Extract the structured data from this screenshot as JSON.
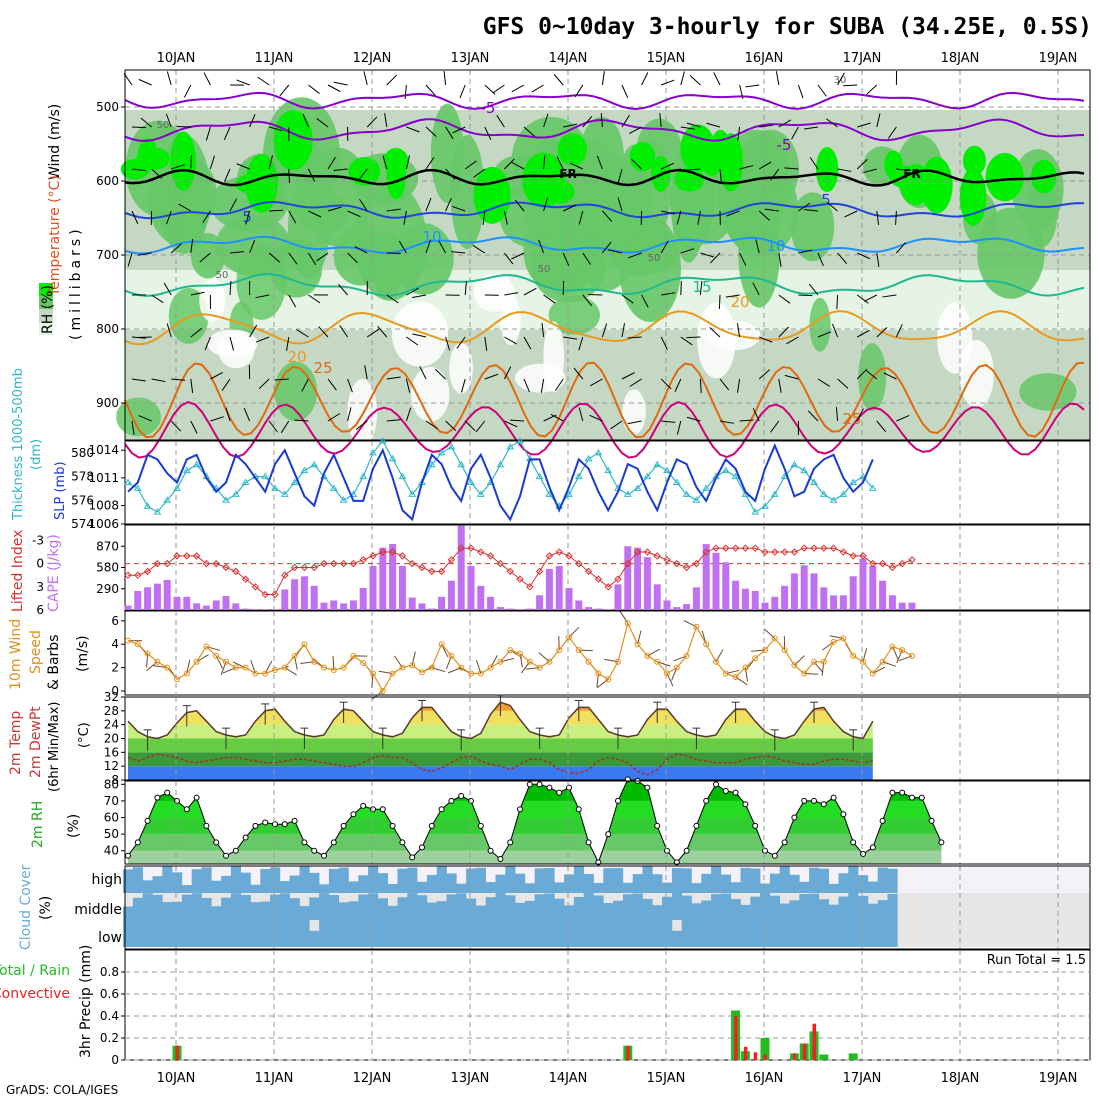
{
  "title": "GFS 0~10day 3-hourly for SUBA (34.25E, 0.5S)",
  "footer": "GrADS: COLA/IGES",
  "colors": {
    "rh_light": "#e8f5e8",
    "rh_mid": "#c0d8c0",
    "rh_dark": "#5cc85c",
    "rh_bright": "#00e000",
    "wind_barb": "#000000",
    "temp_purple": "#8800cc",
    "temp_blue": "#2244dd",
    "temp_sky": "#1e90ff",
    "temp_teal": "#20b890",
    "temp_orange": "#e89a20",
    "temp_dkorange": "#e06a10",
    "temp_magenta": "#d0007a",
    "slp": "#1a3ad0",
    "thick": "#30b8c8",
    "cape": "#c070f0",
    "li": "#d83030",
    "wind10": "#e0901a",
    "cloud": "#6aaad6",
    "precip_total": "#22bb22",
    "precip_conv": "#ee2222"
  },
  "dates": [
    "10JAN",
    "11JAN",
    "12JAN",
    "13JAN",
    "14JAN",
    "15JAN",
    "16JAN",
    "17JAN",
    "18JAN",
    "19JAN"
  ],
  "panels": {
    "p1": {
      "ylabel_wind": "Wind (m/s)",
      "ylabel_temp": "Temperature (°C)",
      "ylabel_rh": "RH (%)",
      "ylabel_mb": "(millibars)",
      "yticks": [
        "500",
        "600",
        "700",
        "800",
        "900"
      ],
      "contour_labels": [
        "-5",
        "-5",
        "FR",
        "FR",
        "5",
        "5",
        "10",
        "10",
        "15",
        "20",
        "20",
        "25",
        "25",
        "50",
        "50",
        "50",
        "50",
        "30"
      ]
    },
    "p2": {
      "ylabel_left": "Thickness 1000-500mb",
      "ylabel_unit_left": "(dm)",
      "ylabel_right": "SLP (mb)",
      "thick_ticks": [
        "580",
        "578",
        "576",
        "574"
      ],
      "slp_ticks": [
        "1014",
        "1011",
        "1008",
        "1006"
      ]
    },
    "p3": {
      "ylabel_left": "Lifted Index",
      "ylabel_right": "CAPE (J/kg)",
      "li_ticks": [
        "-3",
        "0",
        "3",
        "6"
      ],
      "cape_ticks": [
        "870",
        "580",
        "290"
      ]
    },
    "p4": {
      "ylabel1": "10m Wind",
      "ylabel2": "Speed",
      "ylabel3": "& Barbs",
      "ylabel_unit": "(m/s)",
      "yticks": [
        "6",
        "4",
        "2",
        "0"
      ]
    },
    "p5": {
      "ylabel1": "2m Temp",
      "ylabel2": "2m DewPt",
      "ylabel3": "(6hr Min/Max)",
      "ylabel_unit": "(°C)",
      "yticks": [
        "32",
        "28",
        "24",
        "20",
        "16",
        "12",
        "8"
      ]
    },
    "p6": {
      "ylabel": "2m RH",
      "ylabel_unit": "(%)",
      "yticks": [
        "80",
        "70",
        "60",
        "50",
        "40"
      ]
    },
    "p7": {
      "ylabel": "Cloud Cover",
      "ylabel_unit": "(%)",
      "levels": [
        "high",
        "middle",
        "low"
      ]
    },
    "p8": {
      "ylabel1": "Total / Rain",
      "ylabel2": "Convective",
      "ylabel_unit": "3hr Precip (mm)",
      "yticks": [
        "0.8",
        "0.6",
        "0.4",
        "0.2",
        "0"
      ],
      "run_total": "Run Total = 1.5"
    }
  },
  "chart_data": [
    {
      "type": "line",
      "title": "Thickness 1000-500mb / SLP",
      "x_unit": "3-hourly steps from 09 Jan 12Z",
      "series": [
        {
          "name": "SLP (mb)",
          "values": [
            1009.5,
            1010.5,
            1013.5,
            1013,
            1011.5,
            1010.5,
            1013,
            1013.5,
            1011,
            1009.5,
            1010.5,
            1013.5,
            1012.5,
            1011,
            1009.5,
            1012.5,
            1014,
            1011.5,
            1009,
            1008,
            1011.5,
            1013.5,
            1011,
            1008.5,
            1008.5,
            1012,
            1014,
            1011,
            1007.5,
            1006.5,
            1010.5,
            1013.5,
            1012.5,
            1010,
            1008.5,
            1012,
            1013.5,
            1011,
            1008,
            1006.5,
            1009,
            1013,
            1013,
            1010,
            1007.5,
            1010,
            1013,
            1012,
            1009.5,
            1007.5,
            1009.5,
            1012.5,
            1012,
            1009.5,
            1007.5,
            1010.5,
            1013,
            1012.5,
            1010,
            1008.5,
            1011,
            1013,
            1012,
            1009.5,
            1008.5,
            1012,
            1014.5,
            1012,
            1009,
            1009.5,
            1012,
            1013,
            1013.5,
            1011,
            1009.5,
            1010.5,
            1013
          ]
        },
        {
          "name": "Thickness (dm)",
          "values": [
            577.5,
            577,
            575.5,
            575,
            576,
            577,
            578.5,
            579,
            578,
            577,
            576,
            576.5,
            577.5,
            578,
            578,
            577,
            576.5,
            577.5,
            578.5,
            579,
            578,
            577,
            576,
            576.5,
            578,
            580,
            581,
            579.5,
            578,
            576.5,
            577.5,
            579,
            580,
            580.5,
            579,
            577.5,
            576.5,
            577.5,
            579,
            580.5,
            581,
            579.5,
            578,
            576.5,
            575.5,
            576.5,
            578,
            579.5,
            580,
            578.5,
            577,
            576.5,
            577,
            578,
            579,
            578.5,
            577.5,
            576.5,
            576,
            577,
            578,
            578.5,
            578,
            576.5,
            575,
            575.5,
            576.5,
            578,
            579,
            578.5,
            577.5,
            576.5,
            576,
            576.5,
            577.5,
            578,
            577
          ]
        }
      ],
      "ylim_thickness": [
        574,
        581
      ],
      "ylim_slp": [
        1006,
        1015
      ]
    },
    {
      "type": "bar",
      "title": "CAPE / Lifted Index",
      "series": [
        {
          "name": "CAPE (J/kg)",
          "values": [
            60,
            260,
            310,
            360,
            410,
            180,
            180,
            90,
            60,
            130,
            190,
            90,
            20,
            10,
            10,
            10,
            280,
            420,
            460,
            330,
            100,
            130,
            90,
            130,
            300,
            600,
            850,
            900,
            600,
            170,
            90,
            20,
            180,
            400,
            1150,
            600,
            330,
            180,
            40,
            20,
            10,
            20,
            200,
            560,
            600,
            300,
            130,
            40,
            20,
            10,
            350,
            870,
            850,
            720,
            350,
            130,
            40,
            80,
            310,
            900,
            780,
            650,
            400,
            290,
            260,
            100,
            180,
            330,
            500,
            610,
            500,
            310,
            200,
            200,
            460,
            700,
            600,
            400,
            200,
            100,
            100
          ]
        },
        {
          "name": "Lifted Index",
          "values": [
            1.5,
            1.5,
            1,
            0,
            0,
            -1,
            -1,
            -1,
            0,
            0,
            0.5,
            1,
            2,
            3,
            4,
            4,
            1.5,
            0.5,
            0.5,
            0.5,
            0,
            0,
            0,
            0,
            -0.5,
            -1,
            -1.5,
            -1.5,
            -1,
            0,
            0.5,
            1,
            1,
            -0.5,
            -2,
            -2,
            -1.5,
            -1,
            0,
            1,
            2,
            3,
            1,
            -1,
            -1.5,
            -1,
            0,
            1,
            2,
            3,
            2,
            0,
            -1.5,
            -1.5,
            -1,
            -0.5,
            0,
            0.5,
            0,
            -1.5,
            -2,
            -2,
            -2,
            -2,
            -2,
            -1.5,
            -1.5,
            -1.5,
            -1.5,
            -2,
            -2,
            -2,
            -2,
            -1.5,
            -1,
            -1,
            0,
            0,
            0.5,
            0,
            -0.5
          ]
        }
      ],
      "ylim_cape": [
        0,
        1160
      ],
      "ylim_li": [
        6,
        -5
      ]
    },
    {
      "type": "line",
      "title": "10m Wind Speed",
      "series": [
        {
          "name": "10m Wind Speed (m/s)",
          "values": [
            4.3,
            4,
            3.2,
            2.5,
            2,
            1,
            1.5,
            2.5,
            3.8,
            3,
            2.5,
            2,
            2,
            1.5,
            1.5,
            1.8,
            2,
            3,
            4,
            2.5,
            2,
            1.8,
            2,
            3,
            2.4,
            1.5,
            0,
            1.5,
            2,
            2.2,
            1.6,
            2,
            4,
            3,
            2,
            1.5,
            1.5,
            2,
            2.5,
            3.5,
            3.2,
            2.5,
            2,
            2.5,
            3.5,
            4.6,
            3.5,
            2.5,
            1.5,
            1,
            2.5,
            5.8,
            4,
            3,
            2.5,
            1.5,
            2,
            3,
            5.5,
            4,
            2.5,
            1.5,
            1.2,
            2,
            2.8,
            3.5,
            4.5,
            3.5,
            2.2,
            1.5,
            2.5,
            2.5,
            4.2,
            4.5,
            3,
            2.5,
            1.5,
            2.5,
            3.8,
            3.5,
            3
          ]
        }
      ],
      "ylim": [
        0,
        6.5
      ]
    },
    {
      "type": "line",
      "title": "2m Temp / 2m DewPt",
      "series": [
        {
          "name": "2m Temp (°C)",
          "values": [
            25,
            22,
            20.5,
            20,
            21,
            24.5,
            27.5,
            28,
            25,
            22,
            21,
            20.5,
            21,
            25,
            28,
            28.5,
            25,
            22,
            21,
            20.5,
            21,
            25.5,
            28.5,
            28,
            25,
            22,
            21,
            20.5,
            21.5,
            26,
            29,
            29,
            25.5,
            22,
            20.5,
            20,
            21.5,
            27,
            30.5,
            29.5,
            25.5,
            22,
            21,
            20.5,
            21,
            26,
            29,
            29,
            25.5,
            22,
            21,
            20.5,
            21,
            25.5,
            28.5,
            28.5,
            25,
            22,
            21,
            20.5,
            21,
            25.5,
            28.5,
            28.5,
            25,
            22,
            20.5,
            20,
            21,
            25,
            28.5,
            29,
            25,
            22,
            20.5,
            20,
            25
          ]
        },
        {
          "name": "2m DewPt (°C)",
          "values": [
            14.5,
            13.5,
            14.5,
            15.5,
            15,
            14.5,
            13.5,
            13,
            13.5,
            14,
            14.5,
            14.5,
            14,
            13.5,
            13,
            13,
            13.5,
            14,
            14,
            13.5,
            13,
            12.5,
            12,
            12,
            13,
            14.5,
            15,
            14.5,
            14.5,
            13,
            11,
            10.5,
            11.5,
            13,
            14.5,
            15,
            13.5,
            12.5,
            12,
            11,
            12.5,
            14,
            14,
            13,
            11,
            10,
            10,
            11,
            13.5,
            14.5,
            14,
            13,
            10.5,
            9.5,
            11,
            14,
            15.5,
            15,
            14,
            13.5,
            13,
            13,
            13,
            14,
            14.5,
            15,
            14.5,
            13.5,
            13,
            12.5,
            12.5,
            13.5,
            14,
            14,
            13.5,
            13,
            13.5
          ]
        }
      ],
      "ylim": [
        8,
        32
      ]
    },
    {
      "type": "area",
      "title": "2m RH",
      "series": [
        {
          "name": "2m RH (%)",
          "values": [
            37,
            45,
            58,
            72,
            75,
            70,
            65,
            72,
            55,
            45,
            37,
            40,
            48,
            55,
            57,
            56,
            56,
            58,
            45,
            40,
            37,
            45,
            55,
            62,
            67,
            65,
            65,
            55,
            45,
            36,
            42,
            55,
            65,
            70,
            73,
            70,
            55,
            40,
            35,
            45,
            65,
            80,
            80,
            78,
            75,
            78,
            65,
            45,
            33,
            50,
            70,
            83,
            82,
            78,
            55,
            40,
            33,
            40,
            55,
            70,
            80,
            76,
            75,
            68,
            55,
            40,
            37,
            45,
            60,
            70,
            70,
            68,
            72,
            62,
            45,
            38,
            42,
            58,
            75,
            75,
            72,
            72,
            58,
            45
          ]
        }
      ],
      "ylim": [
        32,
        82
      ]
    },
    {
      "type": "bar",
      "title": "3hr Precip",
      "series": [
        {
          "name": "Total (mm)",
          "step_values": {
            "5": 0.13,
            "51": 0.13,
            "62": 0.45,
            "63": 0.08,
            "65": 0.2,
            "68": 0.06,
            "69": 0.15,
            "70": 0.26,
            "71": 0.05,
            "74": 0.06
          }
        },
        {
          "name": "Convective (mm)",
          "step_values": {
            "5": 0.13,
            "51": 0.13,
            "62": 0.4,
            "63": 0.12,
            "64": 0.07,
            "65": 0.05,
            "68": 0.06,
            "69": 0.15,
            "70": 0.33
          }
        }
      ],
      "ylim": [
        0,
        1.0
      ]
    }
  ]
}
